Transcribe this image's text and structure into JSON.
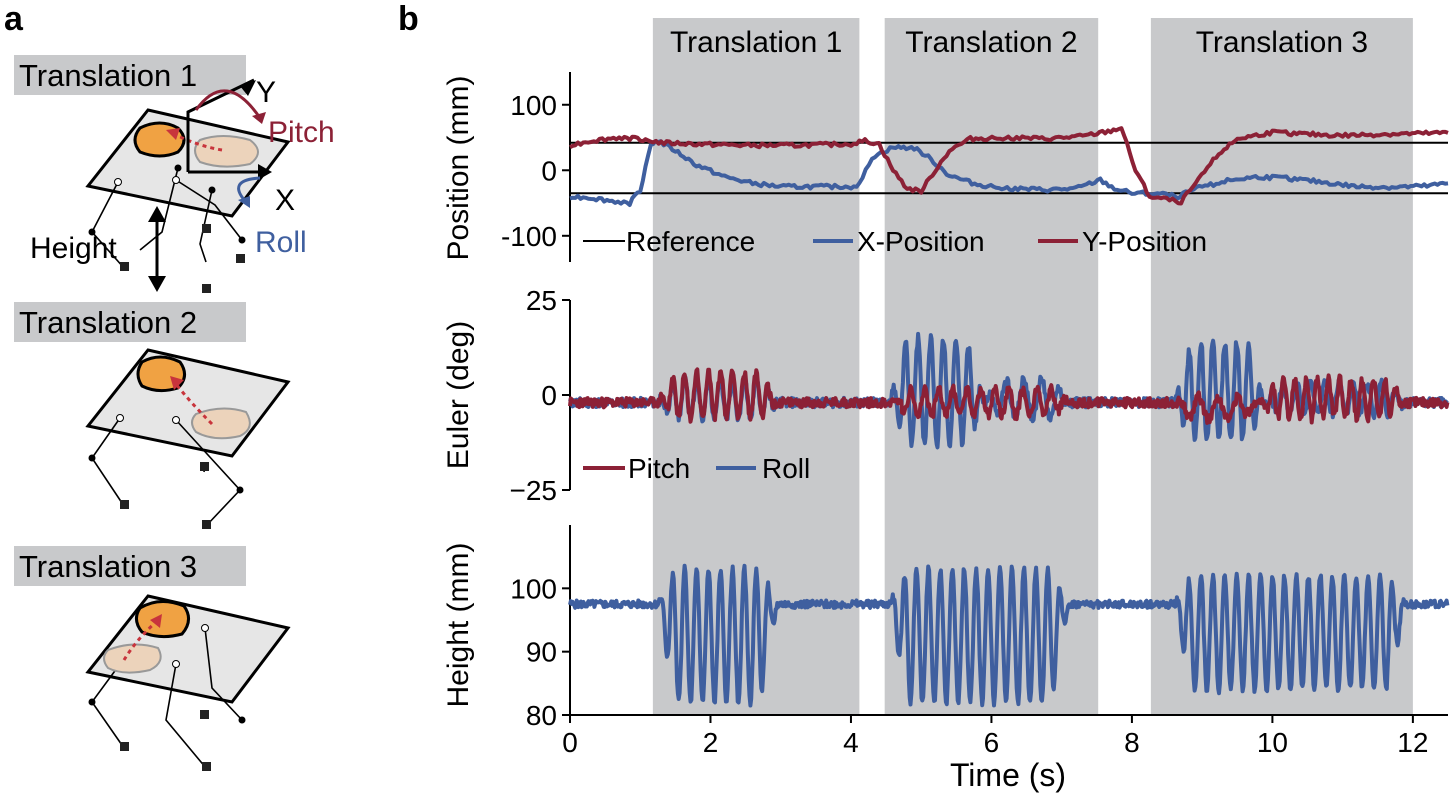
{
  "panel_a": {
    "label": "a",
    "translation1": "Translation 1",
    "translation2": "Translation 2",
    "translation3": "Translation 3",
    "axis_y": "Y",
    "axis_x": "X",
    "pitch": "Pitch",
    "roll": "Roll",
    "height": "Height"
  },
  "panel_b": {
    "label": "b"
  },
  "colors": {
    "reference": "#000000",
    "x_position": "#3f5f9f",
    "y_position": "#8c2136",
    "pitch": "#8c2136",
    "roll": "#3f5f9f",
    "height": "#3f5f9f",
    "shade": "#c8c9cb",
    "pad": "#f0a243",
    "pad_faded": "#ecd3bb"
  },
  "chart_data": [
    {
      "type": "line",
      "ylabel": "Position (mm)",
      "xlabel": "",
      "xlim": [
        0,
        12.5
      ],
      "ylim": [
        -140,
        150
      ],
      "yticks": [
        100,
        0,
        -100
      ],
      "shaded_regions": [
        {
          "label": "Translation 1",
          "x": [
            1.18,
            4.12
          ]
        },
        {
          "label": "Translation 2",
          "x": [
            4.48,
            7.52
          ]
        },
        {
          "label": "Translation 3",
          "x": [
            8.27,
            12.0
          ]
        }
      ],
      "reference_lines": [
        42,
        -35
      ],
      "series": [
        {
          "name": "Reference",
          "color": "#000000",
          "points": []
        },
        {
          "name": "X-Position",
          "color": "#3f5f9f",
          "points": [
            [
              0,
              -40
            ],
            [
              0.3,
              -42
            ],
            [
              0.6,
              -47
            ],
            [
              0.85,
              -50
            ],
            [
              1.0,
              -30
            ],
            [
              1.15,
              40
            ],
            [
              1.25,
              45
            ],
            [
              1.5,
              30
            ],
            [
              1.8,
              8
            ],
            [
              2.2,
              -10
            ],
            [
              2.6,
              -20
            ],
            [
              3.0,
              -25
            ],
            [
              3.5,
              -25
            ],
            [
              4.0,
              -25
            ],
            [
              4.12,
              -22
            ],
            [
              4.3,
              20
            ],
            [
              4.6,
              35
            ],
            [
              4.9,
              34
            ],
            [
              5.1,
              20
            ],
            [
              5.4,
              -8
            ],
            [
              5.8,
              -22
            ],
            [
              6.3,
              -28
            ],
            [
              6.8,
              -30
            ],
            [
              7.2,
              -28
            ],
            [
              7.55,
              -15
            ],
            [
              7.75,
              -28
            ],
            [
              8.0,
              -35
            ],
            [
              8.4,
              -36
            ],
            [
              8.65,
              -40
            ],
            [
              9.0,
              -25
            ],
            [
              9.4,
              -15
            ],
            [
              9.8,
              -10
            ],
            [
              10.2,
              -12
            ],
            [
              10.7,
              -18
            ],
            [
              11.2,
              -25
            ],
            [
              11.7,
              -26
            ],
            [
              12.2,
              -24
            ],
            [
              12.5,
              -20
            ]
          ]
        },
        {
          "name": "Y-Position",
          "color": "#8c2136",
          "points": [
            [
              0,
              38
            ],
            [
              0.3,
              45
            ],
            [
              0.7,
              50
            ],
            [
              1.0,
              48
            ],
            [
              1.3,
              42
            ],
            [
              1.8,
              40
            ],
            [
              2.5,
              38
            ],
            [
              3.2,
              38
            ],
            [
              4.0,
              40
            ],
            [
              4.2,
              45
            ],
            [
              4.4,
              40
            ],
            [
              4.6,
              0
            ],
            [
              4.8,
              -28
            ],
            [
              5.0,
              -32
            ],
            [
              5.2,
              0
            ],
            [
              5.4,
              30
            ],
            [
              5.7,
              48
            ],
            [
              6.2,
              50
            ],
            [
              6.8,
              48
            ],
            [
              7.3,
              52
            ],
            [
              7.7,
              60
            ],
            [
              7.85,
              65
            ],
            [
              8.05,
              0
            ],
            [
              8.25,
              -40
            ],
            [
              8.7,
              -48
            ],
            [
              8.95,
              -15
            ],
            [
              9.2,
              22
            ],
            [
              9.5,
              48
            ],
            [
              10.0,
              58
            ],
            [
              10.5,
              55
            ],
            [
              11.0,
              53
            ],
            [
              11.6,
              55
            ],
            [
              12.5,
              57
            ]
          ]
        }
      ],
      "legend": {
        "position": "bottom-left",
        "entries": [
          "Reference",
          "X-Position",
          "Y-Position"
        ]
      }
    },
    {
      "type": "line",
      "ylabel": "Euler (deg)",
      "xlabel": "",
      "xlim": [
        0,
        12.5
      ],
      "ylim": [
        -25,
        25
      ],
      "yticks": [
        25,
        0,
        -25
      ],
      "yticklabels": [
        "25",
        "0",
        "−25"
      ],
      "series": [
        {
          "name": "Pitch",
          "color": "#8c2136",
          "oscillations": [
            {
              "x": [
                1.25,
                2.95
              ],
              "amp": 6,
              "period": 0.17,
              "offset": 2
            },
            {
              "x": [
                4.6,
                7.1
              ],
              "amp": 3.5,
              "period": 0.2,
              "offset": 0
            },
            {
              "x": [
                8.6,
                9.8
              ],
              "amp": 3,
              "period": 0.28,
              "offset": -1.5
            },
            {
              "x": [
                9.8,
                11.9
              ],
              "amp": 5,
              "period": 0.16,
              "offset": 1
            }
          ]
        },
        {
          "name": "Roll",
          "color": "#3f5f9f",
          "oscillations": [
            {
              "x": [
                1.25,
                2.95
              ],
              "amp": 5,
              "period": 0.17,
              "offset": 1
            },
            {
              "x": [
                4.55,
                5.9
              ],
              "amp": 14,
              "period": 0.18,
              "offset": 3
            },
            {
              "x": [
                5.9,
                7.1
              ],
              "amp": 5,
              "period": 0.25,
              "offset": 1
            },
            {
              "x": [
                8.6,
                9.9
              ],
              "amp": 13,
              "period": 0.17,
              "offset": 3
            },
            {
              "x": [
                9.9,
                11.9
              ],
              "amp": 4,
              "period": 0.2,
              "offset": 1
            }
          ]
        }
      ],
      "legend": {
        "position": "bottom-left",
        "entries": [
          "Pitch",
          "Roll"
        ]
      }
    },
    {
      "type": "line",
      "ylabel": "Height (mm)",
      "xlabel": "Time (s)",
      "xlim": [
        0,
        12.5
      ],
      "ylim": [
        80,
        110
      ],
      "yticks": [
        100,
        90,
        80
      ],
      "xticks": [
        0,
        2,
        4,
        6,
        8,
        10,
        12
      ],
      "series": [
        {
          "name": "Height",
          "color": "#3f5f9f",
          "baseline": 97.5,
          "oscillations": [
            {
              "x": [
                1.25,
                2.95
              ],
              "center": 92.5,
              "amp": 10.5,
              "period": 0.17
            },
            {
              "x": [
                4.55,
                7.1
              ],
              "center": 92.5,
              "amp": 10.5,
              "period": 0.17
            },
            {
              "x": [
                8.6,
                11.9
              ],
              "center": 93,
              "amp": 9,
              "period": 0.17
            }
          ]
        }
      ]
    }
  ]
}
